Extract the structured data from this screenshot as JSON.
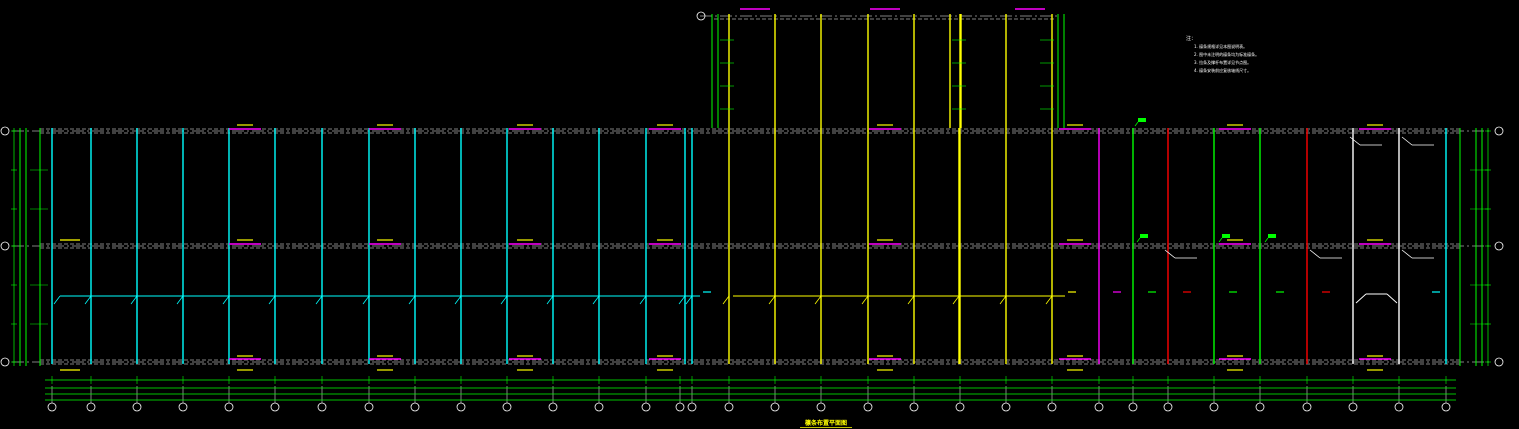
{
  "drawing": {
    "title": "檩条布置平面图",
    "notes_heading": "注：",
    "notes": [
      "1. 檩条规格详见本图说明表。",
      "2. 图中未注明的檩条均为标准檩条。",
      "3. 拉条及撑杆布置详见节点图。",
      "4. 檩条安装前应复核轴线尺寸。"
    ],
    "colors": {
      "cyan": "#00ffff",
      "yellow": "#ffff00",
      "magenta": "#ff00ff",
      "red": "#ff0000",
      "green": "#00ff00",
      "white": "#ffffff"
    },
    "icons": [
      "axis-bubble-icon",
      "tag-leader-icon"
    ]
  }
}
